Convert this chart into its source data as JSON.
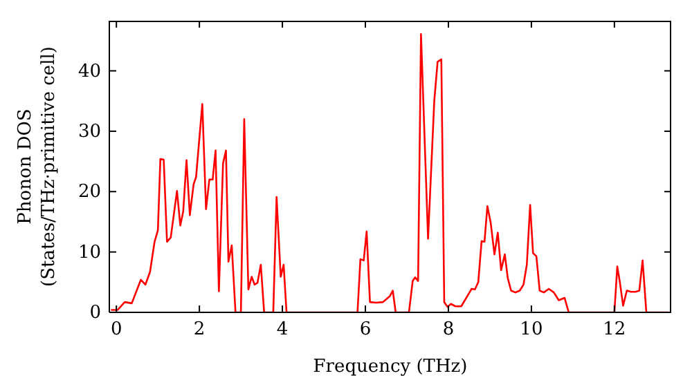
{
  "chart_data": {
    "type": "line",
    "xlabel": "Frequency (THz)",
    "ylabel": "Phonon DOS\n(States/THz·primitive cell)",
    "x": [
      -0.13,
      0.03,
      0.2,
      0.37,
      0.59,
      0.7,
      0.81,
      0.92,
      1.0,
      1.06,
      1.14,
      1.22,
      1.31,
      1.46,
      1.54,
      1.61,
      1.69,
      1.77,
      1.86,
      1.92,
      2.07,
      2.16,
      2.24,
      2.32,
      2.39,
      2.47,
      2.57,
      2.64,
      2.7,
      2.78,
      2.87,
      3.0,
      3.08,
      3.18,
      3.26,
      3.33,
      3.4,
      3.48,
      3.56,
      3.78,
      3.86,
      3.96,
      4.03,
      4.1,
      5.81,
      5.88,
      5.96,
      6.03,
      6.11,
      6.26,
      6.42,
      6.59,
      6.66,
      6.73,
      7.05,
      7.14,
      7.2,
      7.27,
      7.34,
      7.51,
      7.66,
      7.74,
      7.83,
      7.9,
      7.98,
      8.06,
      8.17,
      8.31,
      8.44,
      8.56,
      8.64,
      8.72,
      8.8,
      8.87,
      8.94,
      9.02,
      9.11,
      9.19,
      9.27,
      9.36,
      9.43,
      9.51,
      9.61,
      9.72,
      9.81,
      9.89,
      9.97,
      10.04,
      10.12,
      10.2,
      10.3,
      10.42,
      10.54,
      10.66,
      10.8,
      10.9,
      12.0,
      12.07,
      12.13,
      12.21,
      12.3,
      12.4,
      12.51,
      12.6,
      12.68,
      12.77,
      13.3
    ],
    "series": [
      {
        "color": "#ff0000",
        "values": [
          0.4,
          0.4,
          1.7,
          1.5,
          5.4,
          4.6,
          6.7,
          11.7,
          13.6,
          25.4,
          25.3,
          11.7,
          12.4,
          20.1,
          14.4,
          16.7,
          25.2,
          16.1,
          21.2,
          22.4,
          34.5,
          17.1,
          22.0,
          22.0,
          26.8,
          3.5,
          24.7,
          26.8,
          8.4,
          11.1,
          0,
          0,
          32.0,
          3.8,
          5.9,
          4.6,
          4.9,
          7.9,
          0,
          0,
          19.1,
          5.9,
          7.9,
          0,
          0,
          8.8,
          8.6,
          13.4,
          1.7,
          1.6,
          1.7,
          2.7,
          3.6,
          0,
          0,
          5.2,
          5.8,
          5.2,
          46.1,
          12.2,
          35.0,
          41.5,
          41.9,
          1.7,
          0.9,
          1.4,
          1.0,
          1.0,
          2.5,
          3.9,
          3.8,
          5.0,
          11.8,
          11.7,
          17.6,
          14.8,
          9.6,
          13.2,
          7.0,
          9.6,
          5.7,
          3.6,
          3.3,
          3.6,
          4.6,
          7.9,
          17.8,
          9.8,
          9.3,
          3.6,
          3.3,
          3.9,
          3.3,
          2.0,
          2.4,
          0,
          0,
          7.6,
          5.1,
          1.1,
          3.6,
          3.4,
          3.4,
          3.6,
          8.6,
          0,
          0
        ]
      }
    ],
    "xlim": [
      -0.17,
      13.37
    ],
    "ylim": [
      0,
      48.3
    ],
    "xticks": [
      0,
      2,
      4,
      6,
      8,
      10,
      12
    ],
    "yticks": [
      0,
      10,
      20,
      30,
      40
    ],
    "grid": false,
    "legend": false,
    "marker": "none",
    "line_style": "solid"
  }
}
